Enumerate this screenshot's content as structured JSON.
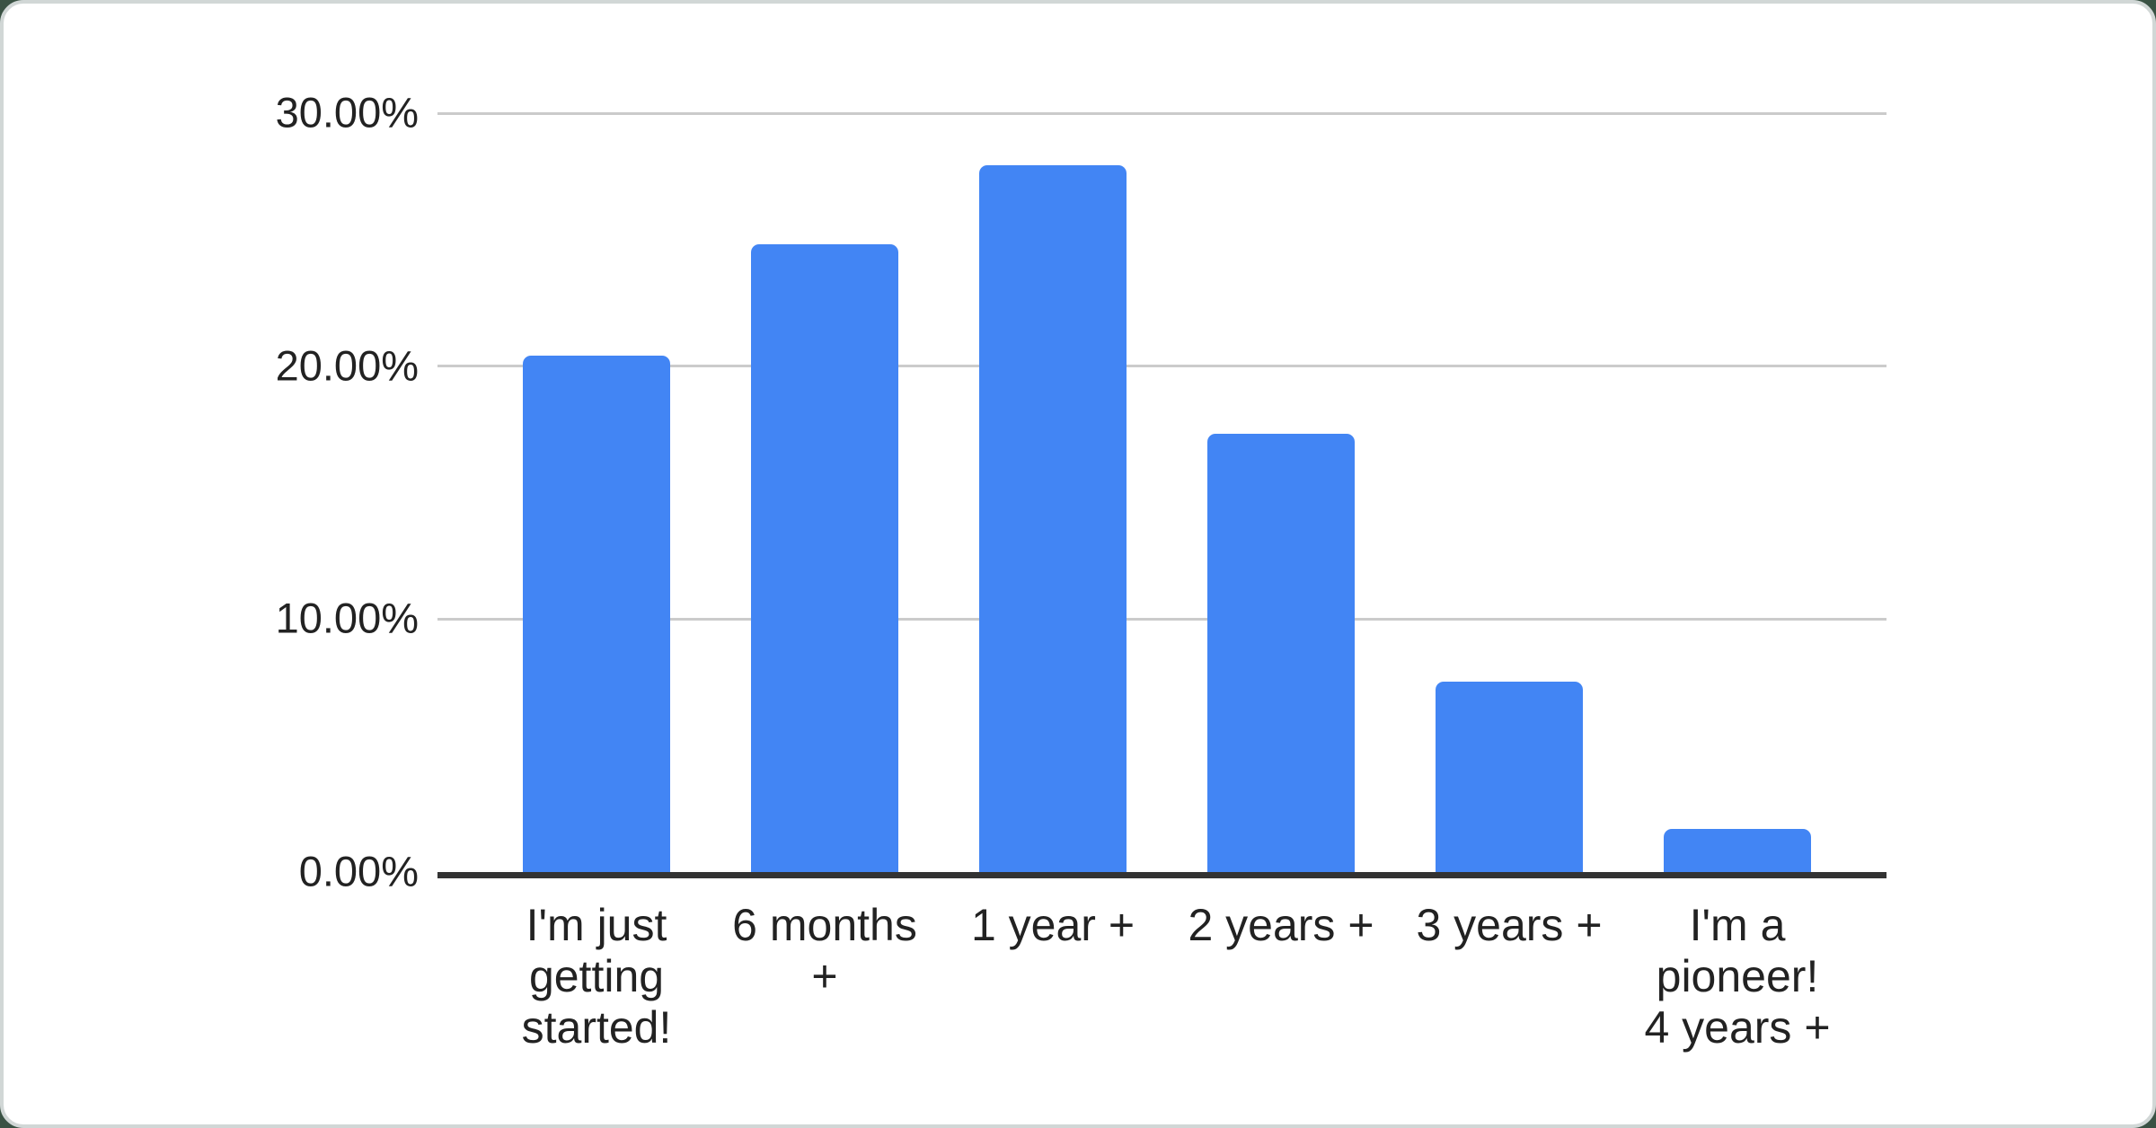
{
  "page": {
    "background_color": "#3a5244",
    "card_color": "#ffffff",
    "card_border_color": "#d1d7d6"
  },
  "chart_data": {
    "type": "bar",
    "title": "",
    "xlabel": "",
    "ylabel": "",
    "categories": [
      "I'm just getting started!",
      "6 months +",
      "1 year +",
      "2 years +",
      "3 years +",
      "I'm a pioneer! 4 years +"
    ],
    "category_lines": [
      [
        "I'm just",
        "getting",
        "started!"
      ],
      [
        "6 months",
        "+"
      ],
      [
        "1 year +"
      ],
      [
        "2 years +"
      ],
      [
        "3 years +"
      ],
      [
        "I'm a",
        "pioneer!",
        "4 years +"
      ]
    ],
    "values": [
      20.42,
      24.8,
      27.94,
      17.31,
      7.53,
      1.7
    ],
    "unit": "%",
    "ylim": [
      0,
      30
    ],
    "ytick_values": [
      0,
      10,
      20,
      30
    ],
    "ytick_labels": [
      "0.00%",
      "10.00%",
      "20.00%",
      "30.00%"
    ],
    "grid": true,
    "legend": "none",
    "bar_color": "#4285f4",
    "gridline_color": "#cbcbcb",
    "axis_line_color": "#333333",
    "label_color": "#222222"
  }
}
